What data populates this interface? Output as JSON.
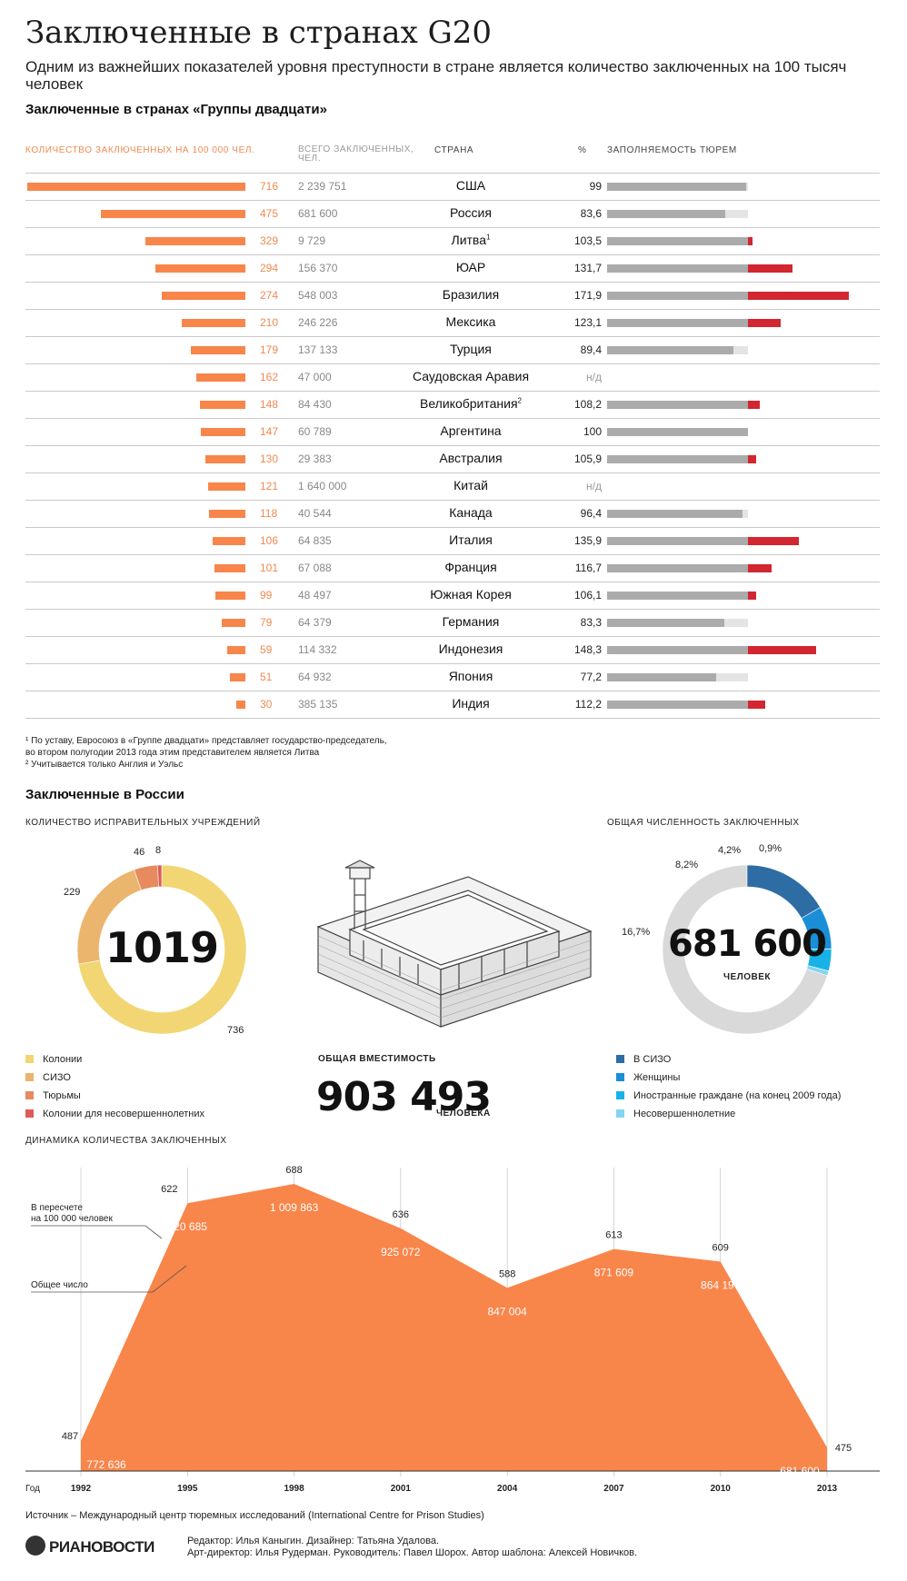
{
  "header": {
    "title": "Заключенные в странах G20",
    "subtitle": "Одним из важнейших показателей уровня преступности в стране является количество заключенных на 100 тысяч человек"
  },
  "g20": {
    "section_title": "Заключенные в странах «Группы двадцати»",
    "col_rate": "КОЛИЧЕСТВО ЗАКЛЮЧЕННЫХ НА 100 000 ЧЕЛ.",
    "col_total": "ВСЕГО ЗАКЛЮЧЕННЫХ, ЧЕЛ.",
    "col_country": "СТРАНА",
    "col_pct": "%",
    "col_occupancy": "ЗАПОЛНЯЕМОСТЬ ТЮРЕМ",
    "footnotes": [
      "¹ По уставу, Евросоюз в «Группе двадцати» представляет государство-председатель,",
      "  во втором полугодии 2013 года этим представителем является Литва",
      "² Учитывается только Англия и Уэльс"
    ]
  },
  "chart_data": [
    {
      "type": "table",
      "title": "Заключенные в странах «Группы двадцати»",
      "rows": [
        {
          "country": "США",
          "sup": "",
          "rate": 716,
          "total": "2 239 751",
          "occupancy": 99,
          "occupancy_label": "99"
        },
        {
          "country": "Россия",
          "sup": "",
          "rate": 475,
          "total": "681 600",
          "occupancy": 83.6,
          "occupancy_label": "83,6"
        },
        {
          "country": "Литва",
          "sup": "1",
          "rate": 329,
          "total": "9 729",
          "occupancy": 103.5,
          "occupancy_label": "103,5"
        },
        {
          "country": "ЮАР",
          "sup": "",
          "rate": 294,
          "total": "156 370",
          "occupancy": 131.7,
          "occupancy_label": "131,7"
        },
        {
          "country": "Бразилия",
          "sup": "",
          "rate": 274,
          "total": "548 003",
          "occupancy": 171.9,
          "occupancy_label": "171,9"
        },
        {
          "country": "Мексика",
          "sup": "",
          "rate": 210,
          "total": "246 226",
          "occupancy": 123.1,
          "occupancy_label": "123,1"
        },
        {
          "country": "Турция",
          "sup": "",
          "rate": 179,
          "total": "137 133",
          "occupancy": 89.4,
          "occupancy_label": "89,4"
        },
        {
          "country": "Саудовская Аравия",
          "sup": "",
          "rate": 162,
          "total": "47 000",
          "occupancy": null,
          "occupancy_label": "н/д"
        },
        {
          "country": "Великобритания",
          "sup": "2",
          "rate": 148,
          "total": "84 430",
          "occupancy": 108.2,
          "occupancy_label": "108,2"
        },
        {
          "country": "Аргентина",
          "sup": "",
          "rate": 147,
          "total": "60 789",
          "occupancy": 100,
          "occupancy_label": "100"
        },
        {
          "country": "Австралия",
          "sup": "",
          "rate": 130,
          "total": "29 383",
          "occupancy": 105.9,
          "occupancy_label": "105,9"
        },
        {
          "country": "Китай",
          "sup": "",
          "rate": 121,
          "total": "1 640 000",
          "occupancy": null,
          "occupancy_label": "н/д"
        },
        {
          "country": "Канада",
          "sup": "",
          "rate": 118,
          "total": "40 544",
          "occupancy": 96.4,
          "occupancy_label": "96,4"
        },
        {
          "country": "Италия",
          "sup": "",
          "rate": 106,
          "total": "64 835",
          "occupancy": 135.9,
          "occupancy_label": "135,9"
        },
        {
          "country": "Франция",
          "sup": "",
          "rate": 101,
          "total": "67 088",
          "occupancy": 116.7,
          "occupancy_label": "116,7"
        },
        {
          "country": "Южная Корея",
          "sup": "",
          "rate": 99,
          "total": "48 497",
          "occupancy": 106.1,
          "occupancy_label": "106,1"
        },
        {
          "country": "Германия",
          "sup": "",
          "rate": 79,
          "total": "64 379",
          "occupancy": 83.3,
          "occupancy_label": "83,3"
        },
        {
          "country": "Индонезия",
          "sup": "",
          "rate": 59,
          "total": "114 332",
          "occupancy": 148.3,
          "occupancy_label": "148,3"
        },
        {
          "country": "Япония",
          "sup": "",
          "rate": 51,
          "total": "64 932",
          "occupancy": 77.2,
          "occupancy_label": "77,2"
        },
        {
          "country": "Индия",
          "sup": "",
          "rate": 30,
          "total": "385 135",
          "occupancy": 112.2,
          "occupancy_label": "112,2"
        }
      ],
      "colors": {
        "rate_bar": "#f8854a",
        "occupancy": "#ababab",
        "overcrowding": "#d22630",
        "occupancy_bg": "#e4e4e4"
      }
    },
    {
      "type": "pie",
      "title": "КОЛИЧЕСТВО ИСПРАВИТЕЛЬНЫХ УЧРЕЖДЕНИЙ",
      "center_label": "1019",
      "slices": [
        {
          "name": "Колонии",
          "value": 736,
          "label": "736",
          "color": "#f1d673"
        },
        {
          "name": "СИЗО",
          "value": 229,
          "label": "229",
          "color": "#ebb56e"
        },
        {
          "name": "Тюрьмы",
          "value": 46,
          "label": "46",
          "color": "#e78a5e"
        },
        {
          "name": "Колонии для несовершеннолетних",
          "value": 8,
          "label": "8",
          "color": "#e25a55"
        }
      ]
    },
    {
      "type": "pie",
      "title": "ОБЩАЯ ЧИСЛЕННОСТЬ ЗАКЛЮЧЕННЫХ",
      "center_label": "681 600",
      "center_sublabel": "ЧЕЛОВЕК",
      "slices": [
        {
          "name": "Несовершеннолетние",
          "value": 0.9,
          "label": "0,9%",
          "color": "#84d5f0"
        },
        {
          "name": "Иностранные граждане (на конец 2009 года)",
          "value": 4.2,
          "label": "4,2%",
          "color": "#19b2e8"
        },
        {
          "name": "Женщины",
          "value": 8.2,
          "label": "8,2%",
          "color": "#1a8fd8"
        },
        {
          "name": "В СИЗО",
          "value": 16.7,
          "label": "16,7%",
          "color": "#2e6da4"
        },
        {
          "name": "",
          "value": 70.0,
          "label": "",
          "color": "#d9d9d9"
        }
      ]
    },
    {
      "type": "area",
      "title": "ДИНАМИКА КОЛИЧЕСТВА ЗАКЛЮЧЕННЫХ",
      "xlabel": "Год",
      "x": [
        1992,
        1995,
        1998,
        2001,
        2004,
        2007,
        2010,
        2013
      ],
      "series": [
        {
          "name": "Общее число",
          "values": [
            772636,
            920685,
            1009863,
            925072,
            847004,
            871609,
            864197,
            681600
          ],
          "labels": [
            "772 636",
            "920 685",
            "1 009 863",
            "925 072",
            "847 004",
            "871 609",
            "864 197",
            "681 600"
          ]
        },
        {
          "name": "В пересчете на 100 000 человек",
          "values": [
            487,
            622,
            688,
            636,
            588,
            613,
            609,
            475
          ],
          "labels": [
            "487",
            "622",
            "688",
            "636",
            "588",
            "613",
            "609",
            "475"
          ]
        }
      ],
      "color": "#f8854a"
    }
  ],
  "russia": {
    "section_title": "Заключенные в России",
    "inst_title": "КОЛИЧЕСТВО ИСПРАВИТЕЛЬНЫХ УЧРЕЖДЕНИЙ",
    "pop_title": "ОБЩАЯ ЧИСЛЕННОСТЬ ЗАКЛЮЧЕННЫХ",
    "capacity_title": "ОБЩАЯ ВМЕСТИМОСТЬ",
    "capacity_value": "903 493",
    "capacity_unit": "ЧЕЛОВЕКА",
    "dynamics_title": "ДИНАМИКА КОЛИЧЕСТВА ЗАКЛЮЧЕННЫХ",
    "ann_rate": [
      "В пересчете",
      "на 100 000 человек"
    ],
    "ann_total": "Общее число"
  },
  "footer": {
    "source": "Источник – Международный центр тюремных исследований (International Centre for Prison Studies)",
    "logo": "РИАНОВОСТИ",
    "credits_1": "Редактор: Илья Каныгин. Дизайнер: Татьяна Удалова.",
    "credits_2": "Арт-директор: Илья Рудерман. Руководитель: Павел Шорох. Автор шаблона: Алексей Новичков."
  }
}
